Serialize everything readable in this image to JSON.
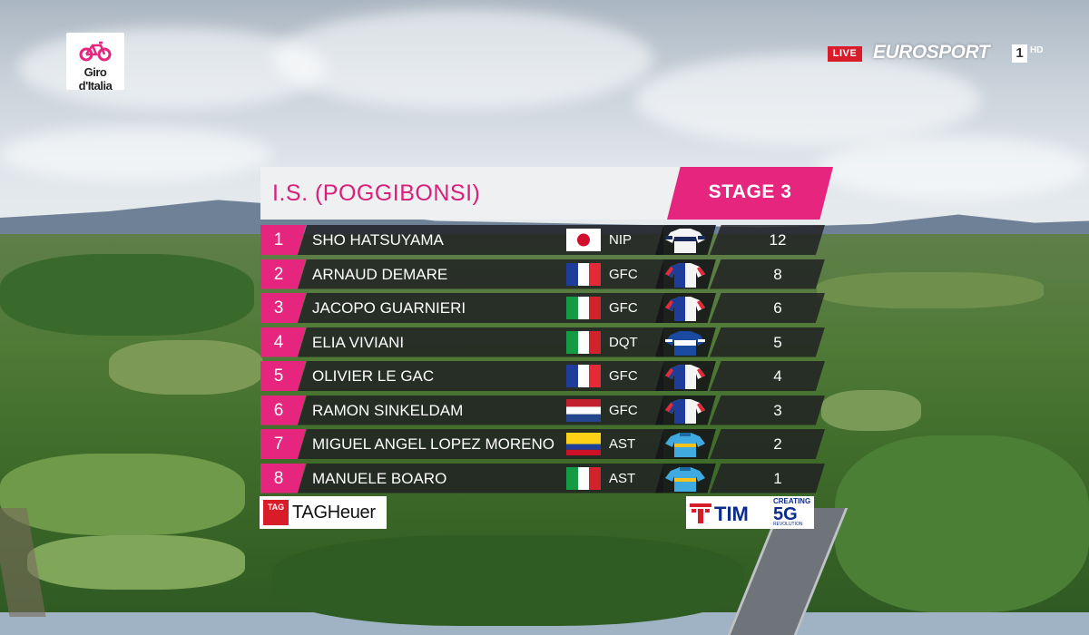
{
  "broadcast": {
    "live_label": "LIVE",
    "channel_name": "EUROSPORT",
    "channel_number": "1",
    "channel_quality": "HD",
    "race_logo_text": "Giro d'Italia"
  },
  "results": {
    "title": "I.S. (POGGIBONSI)",
    "stage": "STAGE 3",
    "riders": [
      {
        "rank": "1",
        "name": "SHO HATSUYAMA",
        "team": "NIP",
        "points": "12",
        "flag": "japan-flag",
        "jersey": "nippo-jersey"
      },
      {
        "rank": "2",
        "name": "ARNAUD DEMARE",
        "team": "GFC",
        "points": "8",
        "flag": "france-flag",
        "jersey": "groupama-jersey"
      },
      {
        "rank": "3",
        "name": "JACOPO GUARNIERI",
        "team": "GFC",
        "points": "6",
        "flag": "italy-flag",
        "jersey": "groupama-jersey"
      },
      {
        "rank": "4",
        "name": "ELIA VIVIANI",
        "team": "DQT",
        "points": "5",
        "flag": "italy-flag",
        "jersey": "deceuninck-jersey"
      },
      {
        "rank": "5",
        "name": "OLIVIER LE GAC",
        "team": "GFC",
        "points": "4",
        "flag": "france-flag",
        "jersey": "groupama-jersey"
      },
      {
        "rank": "6",
        "name": "RAMON SINKELDAM",
        "team": "GFC",
        "points": "3",
        "flag": "netherlands-flag",
        "jersey": "groupama-jersey"
      },
      {
        "rank": "7",
        "name": "MIGUEL ANGEL LOPEZ MORENO",
        "team": "AST",
        "points": "2",
        "flag": "colombia-flag",
        "jersey": "astana-jersey"
      },
      {
        "rank": "8",
        "name": "MANUELE BOARO",
        "team": "AST",
        "points": "1",
        "flag": "italy-flag",
        "jersey": "astana-jersey"
      }
    ]
  },
  "sponsors": {
    "timing": "TAGHeuer",
    "timing_shield": "TAG",
    "telecom": "TIM",
    "telecom_tag_top": "CREATING",
    "telecom_tag_main": "5G",
    "telecom_tag_bottom": "REVOLUTION"
  },
  "colors": {
    "accent_pink": "#e6257f",
    "row_dark": "#1e1e22",
    "live_red": "#d81c2a"
  }
}
